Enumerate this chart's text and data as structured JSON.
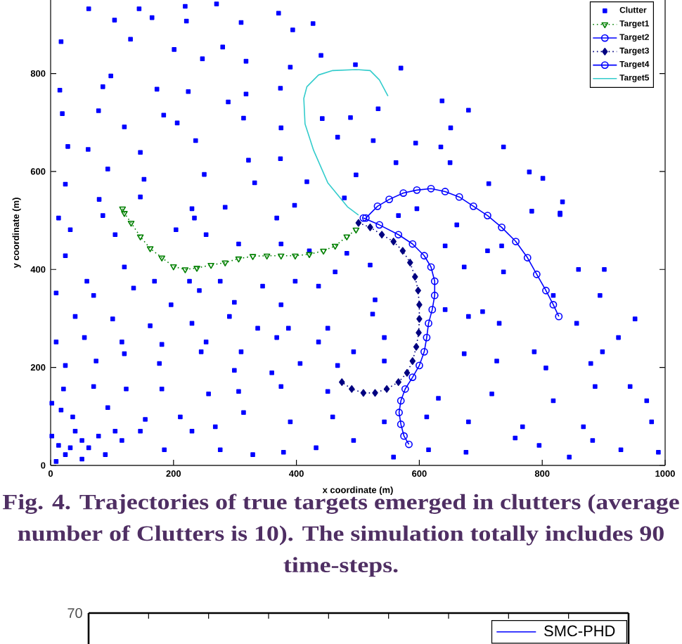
{
  "chart_data": [
    {
      "type": "scatter",
      "xlabel": "x coordinate (m)",
      "ylabel": "y coordinate (m)",
      "xlim": [
        0,
        1000
      ],
      "xticks": [
        0,
        200,
        400,
        600,
        800,
        1000
      ],
      "ylim": [
        0,
        950
      ],
      "yticks": [
        0,
        200,
        400,
        600,
        800
      ],
      "legend": "top right",
      "annotations": [
        "Fig. 4. Trajectories of true targets emerged in clutters (average number of Clutters is 10). The simulation totally includes 90 time-steps."
      ],
      "series": [
        {
          "name": "Clutter",
          "color": "#0000ff",
          "marker": "square",
          "x": [
            62,
            144,
            219,
            270,
            104,
            165,
            221,
            310,
            371,
            427,
            394,
            17,
            130,
            201,
            280,
            247,
            440,
            318,
            390,
            496,
            570,
            98,
            15,
            85,
            173,
            224,
            318,
            374,
            289,
            19,
            78,
            120,
            184,
            206,
            314,
            375,
            442,
            488,
            533,
            637,
            680,
            651,
            28,
            61,
            146,
            236,
            467,
            525,
            594,
            635,
            737,
            93,
            152,
            24,
            250,
            322,
            374,
            332,
            417,
            497,
            562,
            650,
            779,
            801,
            713,
            13,
            79,
            146,
            230,
            284,
            397,
            478,
            829,
            783,
            596,
            833,
            85,
            234,
            368,
            566,
            829,
            661,
            734,
            32,
            105,
            204,
            253,
            306,
            375,
            421,
            482,
            642,
            711,
            24,
            59,
            120,
            169,
            226,
            276,
            345,
            398,
            463,
            520,
            673,
            737,
            859,
            901,
            818,
            9,
            70,
            135,
            196,
            242,
            299,
            375,
            436,
            528,
            642,
            703,
            894,
            951,
            40,
            101,
            162,
            230,
            291,
            337,
            387,
            451,
            524,
            680,
            730,
            856,
            9,
            55,
            116,
            181,
            253,
            310,
            368,
            436,
            493,
            543,
            673,
            787,
            898,
            924,
            24,
            74,
            120,
            177,
            245,
            299,
            360,
            406,
            467,
            543,
            726,
            806,
            879,
            943,
            21,
            70,
            123,
            181,
            257,
            306,
            375,
            451,
            631,
            718,
            818,
            886,
            970,
            2,
            36,
            93,
            154,
            211,
            268,
            314,
            390,
            459,
            543,
            612,
            680,
            768,
            867,
            978,
            13,
            24,
            40,
            51,
            62,
            78,
            89,
            116,
            146,
            185,
            230,
            276,
            329,
            379,
            432,
            493,
            558,
            615,
            676,
            756,
            795,
            844,
            882,
            928,
            989,
            17,
            2,
            9,
            32,
            51,
            105
          ],
          "values": [
            932,
            932,
            937,
            942,
            909,
            914,
            907,
            904,
            923,
            902,
            889,
            865,
            870,
            849,
            854,
            830,
            837,
            825,
            813,
            818,
            811,
            795,
            766,
            773,
            768,
            763,
            758,
            770,
            742,
            718,
            724,
            691,
            715,
            699,
            709,
            689,
            708,
            710,
            728,
            744,
            725,
            689,
            651,
            645,
            639,
            663,
            670,
            663,
            658,
            650,
            650,
            605,
            584,
            574,
            594,
            623,
            626,
            577,
            579,
            593,
            618,
            618,
            599,
            586,
            575,
            505,
            543,
            548,
            524,
            527,
            531,
            546,
            512,
            519,
            524,
            538,
            510,
            505,
            505,
            510,
            515,
            491,
            448,
            481,
            471,
            481,
            471,
            452,
            452,
            438,
            433,
            448,
            438,
            428,
            376,
            405,
            376,
            376,
            376,
            366,
            376,
            395,
            409,
            405,
            395,
            400,
            400,
            347,
            352,
            347,
            362,
            328,
            357,
            333,
            328,
            366,
            338,
            318,
            314,
            347,
            299,
            304,
            299,
            285,
            290,
            304,
            280,
            280,
            280,
            309,
            304,
            290,
            290,
            252,
            261,
            252,
            247,
            252,
            232,
            261,
            252,
            232,
            261,
            228,
            232,
            232,
            261,
            204,
            213,
            228,
            208,
            232,
            194,
            189,
            208,
            204,
            213,
            213,
            199,
            208,
            161,
            156,
            161,
            156,
            156,
            146,
            151,
            161,
            151,
            137,
            146,
            132,
            161,
            132,
            127,
            99,
            118,
            94,
            99,
            79,
            108,
            89,
            99,
            89,
            99,
            89,
            79,
            79,
            89,
            41,
            22,
            70,
            51,
            36,
            60,
            22,
            51,
            70,
            32,
            70,
            32,
            22,
            27,
            36,
            51,
            17,
            32,
            27,
            56,
            41,
            17,
            51,
            32,
            27,
            113,
            60,
            8,
            36,
            13,
            70
          ]
        },
        {
          "name": "Target1",
          "type": "line",
          "color": "#008000",
          "marker": "triangle",
          "line_style": "dotted",
          "x": [
            117,
            120,
            131,
            146,
            162,
            181,
            200,
            219,
            238,
            261,
            284,
            306,
            329,
            352,
            375,
            398,
            421,
            444,
            463,
            482,
            497
          ],
          "values": [
            524,
            515,
            495,
            467,
            443,
            424,
            406,
            400,
            403,
            409,
            414,
            422,
            427,
            428,
            428,
            428,
            431,
            438,
            448,
            467,
            481
          ]
        },
        {
          "name": "Target2",
          "type": "line",
          "color": "#0000ff",
          "marker": "circle",
          "line_style": "solid",
          "x": [
            513,
            532,
            551,
            574,
            596,
            619,
            642,
            665,
            688,
            711,
            734,
            757,
            776,
            791,
            806,
            818,
            827
          ],
          "values": [
            505,
            529,
            543,
            556,
            562,
            565,
            559,
            548,
            529,
            510,
            486,
            457,
            424,
            390,
            357,
            328,
            304
          ]
        },
        {
          "name": "Target3",
          "type": "line",
          "color": "#000080",
          "marker": "diamond",
          "line_style": "dotted",
          "x": [
            501,
            520,
            539,
            558,
            573,
            585,
            593,
            598,
            600,
            600,
            599,
            595,
            589,
            580,
            566,
            547,
            528,
            509,
            490,
            474
          ],
          "values": [
            495,
            486,
            471,
            457,
            438,
            414,
            385,
            357,
            328,
            299,
            271,
            242,
            213,
            189,
            170,
            156,
            148,
            148,
            156,
            170
          ]
        },
        {
          "name": "Target4",
          "type": "line",
          "color": "#0000ff",
          "marker": "circle",
          "line_style": "solid",
          "x": [
            509,
            535,
            566,
            589,
            608,
            619,
            625,
            625,
            621,
            615,
            612,
            608,
            600,
            589,
            577,
            570,
            567,
            570,
            575,
            583
          ],
          "values": [
            505,
            491,
            471,
            452,
            428,
            405,
            376,
            347,
            318,
            290,
            261,
            232,
            204,
            180,
            156,
            132,
            108,
            84,
            60,
            43
          ]
        },
        {
          "name": "Target5",
          "type": "line",
          "color": "#33cccc",
          "marker": "none",
          "line_style": "solid",
          "x": [
            501,
            483,
            451,
            428,
            414,
            412,
            417,
            436,
            459,
            497,
            520,
            535,
            549
          ],
          "values": [
            511,
            528,
            577,
            643,
            697,
            749,
            773,
            797,
            806,
            808,
            806,
            787,
            754
          ]
        }
      ]
    },
    {
      "type": "other",
      "categories": [
        null,
        null,
        null,
        null,
        null,
        null,
        null,
        null,
        null,
        null
      ],
      "annotations": [
        "70"
      ],
      "legend": "top right",
      "series": [
        {
          "name": "SMC-PHD",
          "color": "#0000ff",
          "line_style": "solid",
          "values": [
            null,
            null,
            null,
            null,
            null,
            null,
            null,
            null,
            null,
            null
          ]
        }
      ]
    }
  ]
}
